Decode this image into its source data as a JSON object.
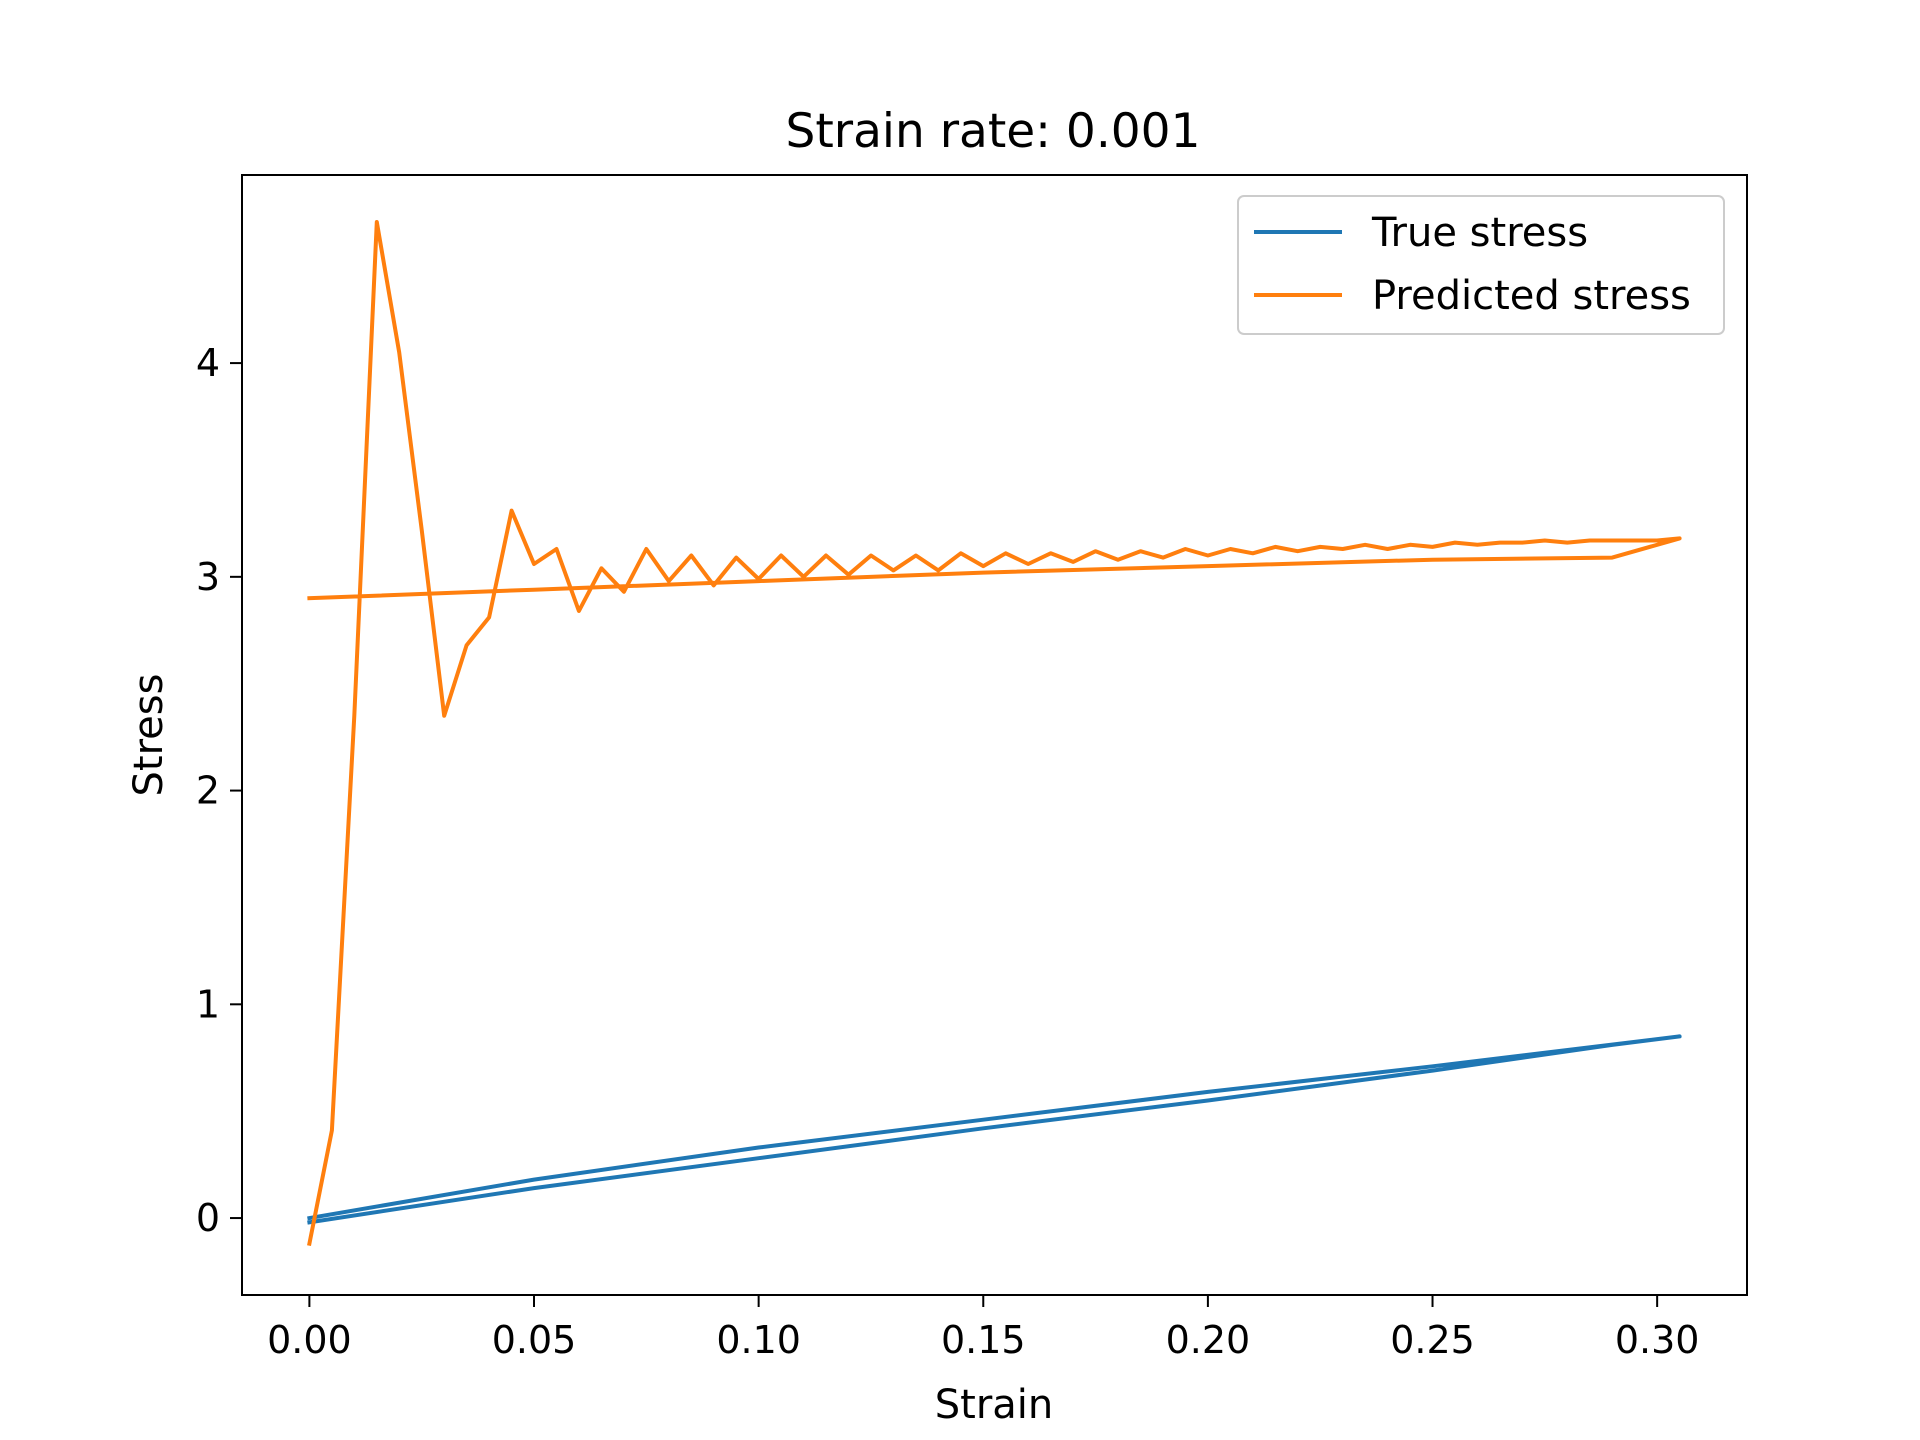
{
  "chart_data": {
    "type": "line",
    "title": "Strain rate: 0.001",
    "xlabel": "Strain",
    "ylabel": "Stress",
    "xlim": [
      -0.015,
      0.32
    ],
    "ylim": [
      -0.36,
      4.88
    ],
    "xticks": [
      0.0,
      0.05,
      0.1,
      0.15,
      0.2,
      0.25,
      0.3
    ],
    "xtick_labels": [
      "0.00",
      "0.05",
      "0.10",
      "0.15",
      "0.20",
      "0.25",
      "0.30"
    ],
    "yticks": [
      0,
      1,
      2,
      3,
      4
    ],
    "ytick_labels": [
      "0",
      "1",
      "2",
      "3",
      "4"
    ],
    "grid": false,
    "legend_position": "top-right",
    "series": [
      {
        "name": "True stress",
        "color": "#1f77b4",
        "x": [
          0.0,
          0.05,
          0.1,
          0.15,
          0.2,
          0.25,
          0.305,
          0.29,
          0.25,
          0.2,
          0.15,
          0.1,
          0.05,
          0.0
        ],
        "y": [
          0.0,
          0.18,
          0.33,
          0.46,
          0.59,
          0.71,
          0.85,
          0.81,
          0.69,
          0.55,
          0.42,
          0.28,
          0.14,
          -0.02
        ]
      },
      {
        "name": "Predicted stress",
        "color": "#ff7f0e",
        "x": [
          0.0,
          0.005,
          0.01,
          0.015,
          0.02,
          0.025,
          0.03,
          0.035,
          0.04,
          0.045,
          0.05,
          0.055,
          0.06,
          0.065,
          0.07,
          0.075,
          0.08,
          0.085,
          0.09,
          0.095,
          0.1,
          0.105,
          0.11,
          0.115,
          0.12,
          0.125,
          0.13,
          0.135,
          0.14,
          0.145,
          0.15,
          0.155,
          0.16,
          0.165,
          0.17,
          0.175,
          0.18,
          0.185,
          0.19,
          0.195,
          0.2,
          0.205,
          0.21,
          0.215,
          0.22,
          0.225,
          0.23,
          0.235,
          0.24,
          0.245,
          0.25,
          0.255,
          0.26,
          0.265,
          0.27,
          0.275,
          0.28,
          0.285,
          0.29,
          0.295,
          0.3,
          0.305,
          0.29,
          0.25,
          0.2,
          0.15,
          0.1,
          0.05,
          0.0
        ],
        "y": [
          -0.12,
          0.41,
          2.35,
          4.66,
          4.05,
          3.22,
          2.35,
          2.68,
          2.81,
          3.31,
          3.06,
          3.13,
          2.84,
          3.04,
          2.93,
          3.13,
          2.98,
          3.1,
          2.96,
          3.09,
          2.99,
          3.1,
          3.0,
          3.1,
          3.01,
          3.1,
          3.03,
          3.1,
          3.03,
          3.11,
          3.05,
          3.11,
          3.06,
          3.11,
          3.07,
          3.12,
          3.08,
          3.12,
          3.09,
          3.13,
          3.1,
          3.13,
          3.11,
          3.14,
          3.12,
          3.14,
          3.13,
          3.15,
          3.13,
          3.15,
          3.14,
          3.16,
          3.15,
          3.16,
          3.16,
          3.17,
          3.16,
          3.17,
          3.17,
          3.17,
          3.17,
          3.18,
          3.09,
          3.08,
          3.05,
          3.02,
          2.98,
          2.94,
          2.9
        ]
      }
    ]
  }
}
